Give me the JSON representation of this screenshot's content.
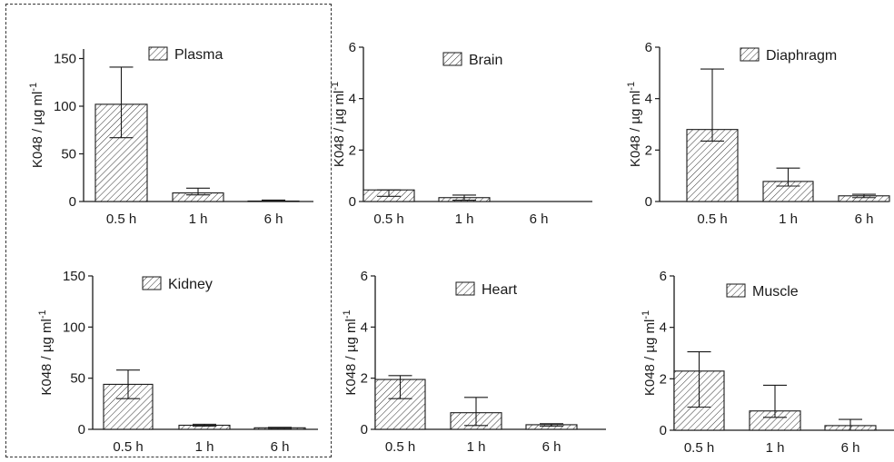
{
  "chart_data": [
    {
      "type": "bar",
      "title": "Plasma",
      "ylabel": "K048 / µg ml-1",
      "ylabel_base": "K048 / ",
      "ylabel_unit": "µg ml",
      "ylabel_sup": "-1",
      "categories": [
        "0.5 h",
        "1 h",
        "6 h"
      ],
      "values": [
        102,
        9,
        0.5
      ],
      "err_high": [
        141,
        14,
        1.5
      ],
      "err_low": [
        67,
        7,
        0
      ],
      "ylim": [
        0,
        160
      ],
      "yticks": [
        "0",
        "50",
        "100",
        "150"
      ],
      "ytick_values": [
        0,
        50,
        100,
        150
      ]
    },
    {
      "type": "bar",
      "title": "Brain",
      "ylabel": "K048 / µg ml-1",
      "ylabel_base": "K048 / ",
      "ylabel_unit": "µg ml",
      "ylabel_sup": "-1",
      "categories": [
        "0.5 h",
        "1 h",
        "6 h"
      ],
      "values": [
        0.45,
        0.15,
        0
      ],
      "err_high": [
        0.45,
        0.25,
        0
      ],
      "err_low": [
        0.2,
        0.05,
        0
      ],
      "ylim": [
        0,
        6
      ],
      "yticks": [
        "0",
        "2",
        "4",
        "6"
      ],
      "ytick_values": [
        0,
        2,
        4,
        6
      ]
    },
    {
      "type": "bar",
      "title": "Diaphragm",
      "ylabel": "K048 / µg ml-1",
      "ylabel_base": "K048 / ",
      "ylabel_unit": "µg ml",
      "ylabel_sup": "-1",
      "categories": [
        "0.5 h",
        "1 h",
        "6 h"
      ],
      "values": [
        2.8,
        0.78,
        0.22
      ],
      "err_high": [
        5.15,
        1.3,
        0.28
      ],
      "err_low": [
        2.35,
        0.6,
        0.15
      ],
      "ylim": [
        0,
        6
      ],
      "yticks": [
        "0",
        "2",
        "4",
        "6"
      ],
      "ytick_values": [
        0,
        2,
        4,
        6
      ]
    },
    {
      "type": "bar",
      "title": "Kidney",
      "ylabel": "K048 / µg ml-1",
      "ylabel_base": "K048 / ",
      "ylabel_unit": "µg ml",
      "ylabel_sup": "-1",
      "categories": [
        "0.5 h",
        "1 h",
        "6 h"
      ],
      "values": [
        44,
        4,
        1.5
      ],
      "err_high": [
        58,
        5,
        2
      ],
      "err_low": [
        30,
        3,
        1
      ],
      "ylim": [
        0,
        150
      ],
      "yticks": [
        "0",
        "50",
        "100",
        "150"
      ],
      "ytick_values": [
        0,
        50,
        100,
        150
      ]
    },
    {
      "type": "bar",
      "title": "Heart",
      "ylabel": "K048 / µg ml-1",
      "ylabel_base": "K048 / ",
      "ylabel_unit": "µg ml",
      "ylabel_sup": "-1",
      "categories": [
        "0.5 h",
        "1 h",
        "6 h"
      ],
      "values": [
        1.95,
        0.65,
        0.18
      ],
      "err_high": [
        2.1,
        1.25,
        0.22
      ],
      "err_low": [
        1.2,
        0.15,
        0.12
      ],
      "ylim": [
        0,
        6
      ],
      "yticks": [
        "0",
        "2",
        "4",
        "6"
      ],
      "ytick_values": [
        0,
        2,
        4,
        6
      ]
    },
    {
      "type": "bar",
      "title": "Muscle",
      "ylabel": "K048 / µg ml-1",
      "ylabel_base": "K048 / ",
      "ylabel_unit": "µg ml",
      "ylabel_sup": "-1",
      "categories": [
        "0.5 h",
        "1 h",
        "6 h"
      ],
      "values": [
        2.3,
        0.75,
        0.18
      ],
      "err_high": [
        3.05,
        1.75,
        0.42
      ],
      "err_low": [
        0.9,
        0.5,
        0
      ],
      "ylim": [
        0,
        6
      ],
      "yticks": [
        "0",
        "2",
        "4",
        "6"
      ],
      "ytick_values": [
        0,
        2,
        4,
        6
      ]
    }
  ]
}
